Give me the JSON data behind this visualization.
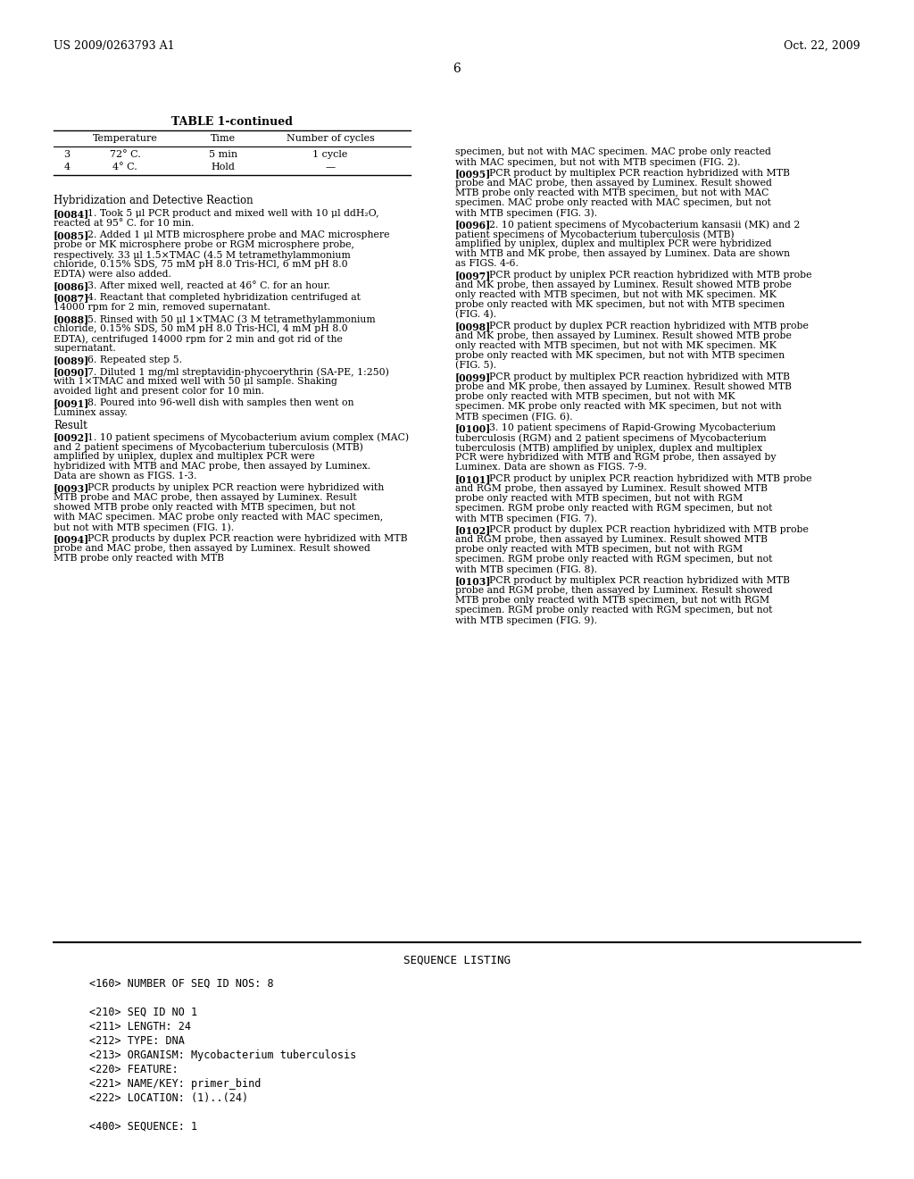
{
  "bg_color": "#ffffff",
  "header_left": "US 2009/0263793 A1",
  "header_right": "Oct. 22, 2009",
  "page_number": "6",
  "table_title": "TABLE 1-continued",
  "table_headers": [
    "",
    "Temperature",
    "Time",
    "Number of cycles"
  ],
  "table_rows": [
    [
      "3",
      "72° C.",
      "5 min",
      "1 cycle"
    ],
    [
      "4",
      "4° C.",
      "Hold",
      "—"
    ]
  ],
  "section_title": "Hybridization and Detective Reaction",
  "left_paragraphs": [
    {
      "tag": "[0084]",
      "text": "1. Took 5 μl PCR product and mixed well with 10 μl ddH₂O, reacted at 95° C. for 10 min."
    },
    {
      "tag": "[0085]",
      "text": "2. Added 1 μl MTB microsphere probe and MAC microsphere probe or MK microsphere probe or RGM microsphere probe, respectively. 33 μl 1.5×TMAC (4.5 M tetramethylammonium chloride, 0.15% SDS, 75 mM pH 8.0 Tris-HCl, 6 mM pH 8.0 EDTA) were also added."
    },
    {
      "tag": "[0086]",
      "text": "3. After mixed well, reacted at 46° C. for an hour."
    },
    {
      "tag": "[0087]",
      "text": "4. Reactant that completed hybridization centrifuged at 14000 rpm for 2 min, removed supernatant."
    },
    {
      "tag": "[0088]",
      "text": "5. Rinsed with 50 μl 1×TMAC (3 M tetramethylammonium chloride, 0.15% SDS, 50 mM pH 8.0 Tris-HCl, 4 mM pH 8.0 EDTA), centrifuged 14000 rpm for 2 min and got rid of the supernatant."
    },
    {
      "tag": "[0089]",
      "text": "6. Repeated step 5."
    },
    {
      "tag": "[0090]",
      "text": "7. Diluted 1 mg/ml streptavidin-phycoerythrin (SA-PE, 1:250) with 1×TMAC and mixed well with 50 μl sample. Shaking avoided light and present color for 10 min."
    },
    {
      "tag": "[0091]",
      "text": "8. Poured into 96-well dish with samples then went on Luminex assay."
    }
  ],
  "result_title": "Result",
  "result_paragraphs_left": [
    {
      "tag": "[0092]",
      "text": "1. 10 patient specimens of Mycobacterium avium complex (MAC) and 2 patient specimens of Mycobacterium tuberculosis (MTB) amplified by uniplex, duplex and multiplex PCR were hybridized with MTB and MAC probe, then assayed by Luminex. Data are shown as FIGS. 1-3."
    },
    {
      "tag": "[0093]",
      "text": "PCR products by uniplex PCR reaction were hybridized with MTB probe and MAC probe, then assayed by Luminex. Result showed MTB probe only reacted with MTB specimen, but not with MAC specimen. MAC probe only reacted with MAC specimen, but not with MTB specimen (FIG. 1)."
    },
    {
      "tag": "[0094]",
      "text": "PCR products by duplex PCR reaction were hybridized with MTB probe and MAC probe, then assayed by Luminex. Result showed MTB probe only reacted with MTB"
    }
  ],
  "right_paragraphs": [
    {
      "tag": "",
      "text": "specimen, but not with MAC specimen. MAC probe only reacted with MAC specimen, but not with MTB specimen (FIG. 2)."
    },
    {
      "tag": "[0095]",
      "text": "PCR product by multiplex PCR reaction hybridized with MTB probe and MAC probe, then assayed by Luminex. Result showed MTB probe only reacted with MTB specimen, but not with MAC specimen. MAC probe only reacted with MAC specimen, but not with MTB specimen (FIG. 3)."
    },
    {
      "tag": "[0096]",
      "text": "2. 10 patient specimens of Mycobacterium kansasii (MK) and 2 patient specimens of Mycobacterium tuberculosis (MTB) amplified by uniplex, duplex and multiplex PCR were hybridized with MTB and MK probe, then assayed by Luminex. Data are shown as FIGS. 4-6."
    },
    {
      "tag": "[0097]",
      "text": "PCR product by uniplex PCR reaction hybridized with MTB probe and MK probe, then assayed by Luminex. Result showed MTB probe only reacted with MTB specimen, but not with MK specimen. MK probe only reacted with MK specimen, but not with MTB specimen (FIG. 4)."
    },
    {
      "tag": "[0098]",
      "text": "PCR product by duplex PCR reaction hybridized with MTB probe and MK probe, then assayed by Luminex. Result showed MTB probe only reacted with MTB specimen, but not with MK specimen. MK probe only reacted with MK specimen, but not with MTB specimen (FIG. 5)."
    },
    {
      "tag": "[0099]",
      "text": "PCR product by multiplex PCR reaction hybridized with MTB probe and MK probe, then assayed by Luminex. Result showed MTB probe only reacted with MTB specimen, but not with MK specimen. MK probe only reacted with MK specimen, but not with MTB specimen (FIG. 6)."
    },
    {
      "tag": "[0100]",
      "text": "3. 10 patient specimens of Rapid-Growing Mycobacterium tuberculosis (RGM) and 2 patient specimens of Mycobacterium tuberculosis (MTB) amplified by uniplex, duplex and multiplex PCR were hybridized with MTB and RGM probe, then assayed by Luminex. Data are shown as FIGS. 7-9."
    },
    {
      "tag": "[0101]",
      "text": "PCR product by uniplex PCR reaction hybridized with MTB probe and RGM probe, then assayed by Luminex. Result showed MTB probe only reacted with MTB specimen, but not with RGM specimen. RGM probe only reacted with RGM specimen, but not with MTB specimen (FIG. 7)."
    },
    {
      "tag": "[0102]",
      "text": "PCR product by duplex PCR reaction hybridized with MTB probe and RGM probe, then assayed by Luminex. Result showed MTB probe only reacted with MTB specimen, but not with RGM specimen. RGM probe only reacted with RGM specimen, but not with MTB specimen (FIG. 8)."
    },
    {
      "tag": "[0103]",
      "text": "PCR product by multiplex PCR reaction hybridized with MTB probe and RGM probe, then assayed by Luminex. Result showed MTB probe only reacted with MTB specimen, but not with RGM specimen. RGM probe only reacted with RGM specimen, but not with MTB specimen (FIG. 9)."
    }
  ],
  "seq_listing_title": "SEQUENCE LISTING",
  "seq_lines": [
    "<160> NUMBER OF SEQ ID NOS: 8",
    "",
    "<210> SEQ ID NO 1",
    "<211> LENGTH: 24",
    "<212> TYPE: DNA",
    "<213> ORGANISM: Mycobacterium tuberculosis",
    "<220> FEATURE:",
    "<221> NAME/KEY: primer_bind",
    "<222> LOCATION: (1)..(24)",
    "",
    "<400> SEQUENCE: 1"
  ]
}
